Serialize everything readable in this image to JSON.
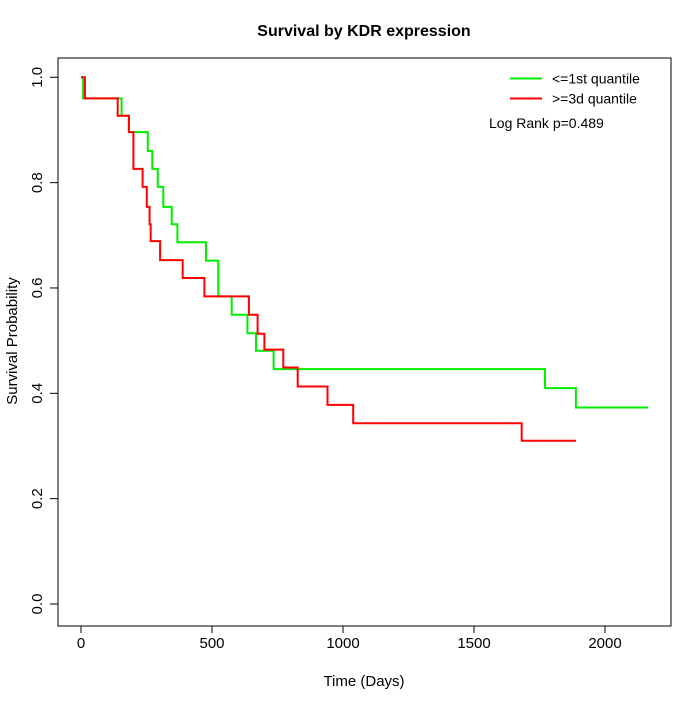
{
  "title": "Survival by KDR expression",
  "axes": {
    "xlabel": "Time (Days)",
    "ylabel": "Survival Probability",
    "xticks": [
      0,
      500,
      1000,
      1500,
      2000
    ],
    "yticks": [
      "0.0",
      "0.2",
      "0.4",
      "0.6",
      "0.8",
      "1.0"
    ]
  },
  "legend": {
    "items": [
      {
        "label": "<=1st quantile",
        "color": "#00ee00"
      },
      {
        "label": ">=3d quantile",
        "color": "#ff0000"
      }
    ],
    "note": "Log Rank p=0.489"
  },
  "chart_data": {
    "type": "line",
    "subtype": "kaplan-meier-step-function",
    "title": "Survival by KDR expression",
    "xlabel": "Time (Days)",
    "ylabel": "Survival Probability",
    "xlim": [
      0,
      2250
    ],
    "ylim": [
      0.0,
      1.0
    ],
    "grid": false,
    "legend_position": "top-right",
    "annotation": "Log Rank p=0.489",
    "series": [
      {
        "name": "<=1st quantile",
        "color": "#00ee00",
        "points": [
          [
            0,
            1.0
          ],
          [
            8,
            0.96
          ],
          [
            155,
            0.927
          ],
          [
            183,
            0.896
          ],
          [
            255,
            0.86
          ],
          [
            272,
            0.826
          ],
          [
            293,
            0.792
          ],
          [
            314,
            0.754
          ],
          [
            346,
            0.721
          ],
          [
            368,
            0.687
          ],
          [
            477,
            0.652
          ],
          [
            524,
            0.584
          ],
          [
            575,
            0.549
          ],
          [
            635,
            0.514
          ],
          [
            668,
            0.481
          ],
          [
            735,
            0.446
          ],
          [
            1771,
            0.41
          ],
          [
            1889,
            0.373
          ]
        ],
        "end_time": 2165
      },
      {
        "name": ">=3d quantile",
        "color": "#ff0000",
        "points": [
          [
            0,
            1.0
          ],
          [
            15,
            0.96
          ],
          [
            140,
            0.927
          ],
          [
            183,
            0.896
          ],
          [
            200,
            0.826
          ],
          [
            235,
            0.792
          ],
          [
            251,
            0.754
          ],
          [
            262,
            0.721
          ],
          [
            266,
            0.689
          ],
          [
            302,
            0.653
          ],
          [
            388,
            0.619
          ],
          [
            471,
            0.584
          ],
          [
            641,
            0.549
          ],
          [
            674,
            0.513
          ],
          [
            700,
            0.483
          ],
          [
            772,
            0.449
          ],
          [
            827,
            0.413
          ],
          [
            941,
            0.378
          ],
          [
            1039,
            0.343
          ],
          [
            1682,
            0.31
          ]
        ],
        "end_time": 1889
      }
    ]
  }
}
